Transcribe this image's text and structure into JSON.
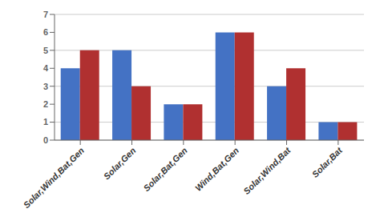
{
  "chart_data": {
    "type": "bar",
    "categories": [
      "Solar,Wind,Bat,Gen",
      "Solar,Gen",
      "Solar,Bat,Gen",
      "Wind,Bat,Gen",
      "Solar,Wind,Bat",
      "Solar,Bat"
    ],
    "series": [
      {
        "color": "#4472C4",
        "values": [
          4,
          5,
          2,
          6,
          3,
          1
        ]
      },
      {
        "color": "#B03030",
        "values": [
          5,
          3,
          2,
          6,
          4,
          1
        ]
      }
    ],
    "ylim": [
      0,
      7
    ],
    "yticks": [
      0,
      1,
      2,
      3,
      4,
      5,
      6,
      7
    ],
    "grid": true
  }
}
